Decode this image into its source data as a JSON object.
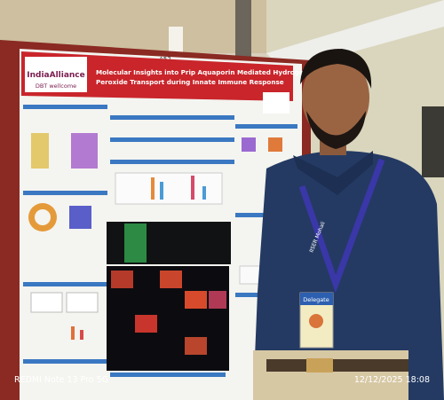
{
  "poster": {
    "board_label": "A52",
    "logo": "IndiaAlliance",
    "logo_sub": "DBT wellcome",
    "title_lines": [
      "Molecular Insights into Prip Aquaporin Mediated Hydrogen",
      "Peroxide Transport during Innate Immune Response"
    ]
  },
  "badge": {
    "label": "Delegate"
  },
  "lanyard": "IISER Mohali",
  "watermark": {
    "device": "REDMI Note 13 Pro 5G",
    "timestamp": "12/12/2025 18:08"
  }
}
